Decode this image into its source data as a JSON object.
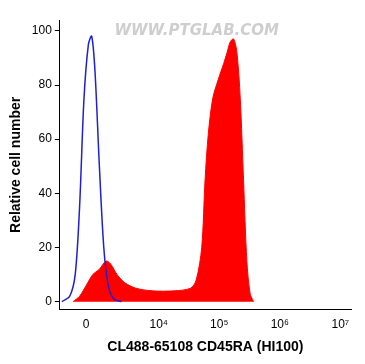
{
  "chart_data": {
    "type": "histogram_overlay",
    "x_label": "CL488-65108 CD45RA (HI100)",
    "y_label": "Relative cell number",
    "annotations": [
      {
        "text": "WWW.PTGLAB.COM"
      }
    ],
    "xlim": [
      -1500,
      15000000
    ],
    "xticks": [
      0,
      {
        "value": 10000,
        "label": "10⁴"
      },
      {
        "value": 100000,
        "label": "10⁵"
      },
      {
        "value": 1000000,
        "label": "10⁶"
      },
      {
        "value": 10000000,
        "label": "10⁷"
      }
    ],
    "ylim": [
      -3,
      104
    ],
    "yticks": [
      0,
      20,
      40,
      60,
      80,
      100
    ],
    "grid": false,
    "series": [
      {
        "type": "line",
        "color": "#1f1fd6",
        "x": [
          -1350,
          -852,
          -547,
          -323,
          -107,
          107,
          268,
          434,
          665,
          916,
          1193,
          1590,
          2264
        ],
        "values": [
          0,
          2,
          10,
          35,
          75,
          95,
          98,
          85,
          50,
          20,
          6,
          1,
          0
        ]
      },
      {
        "type": "area",
        "color": "#ff0000",
        "x": [
          -665,
          -323,
          0,
          323,
          665,
          1052,
          1350,
          1860,
          2610,
          4080,
          7760,
          18000,
          33800,
          41700,
          51400,
          58400,
          66100,
          78100,
          96300,
          118800,
          134800,
          152600,
          173000,
          196000,
          222600,
          252000,
          286000,
          324000,
          369000
        ],
        "values": [
          0,
          2,
          6,
          10,
          12,
          15,
          14,
          10,
          7,
          5,
          4,
          4,
          5,
          8,
          20,
          45,
          62,
          75,
          82,
          88,
          92,
          96,
          97,
          92,
          75,
          45,
          15,
          3,
          0
        ]
      }
    ]
  }
}
